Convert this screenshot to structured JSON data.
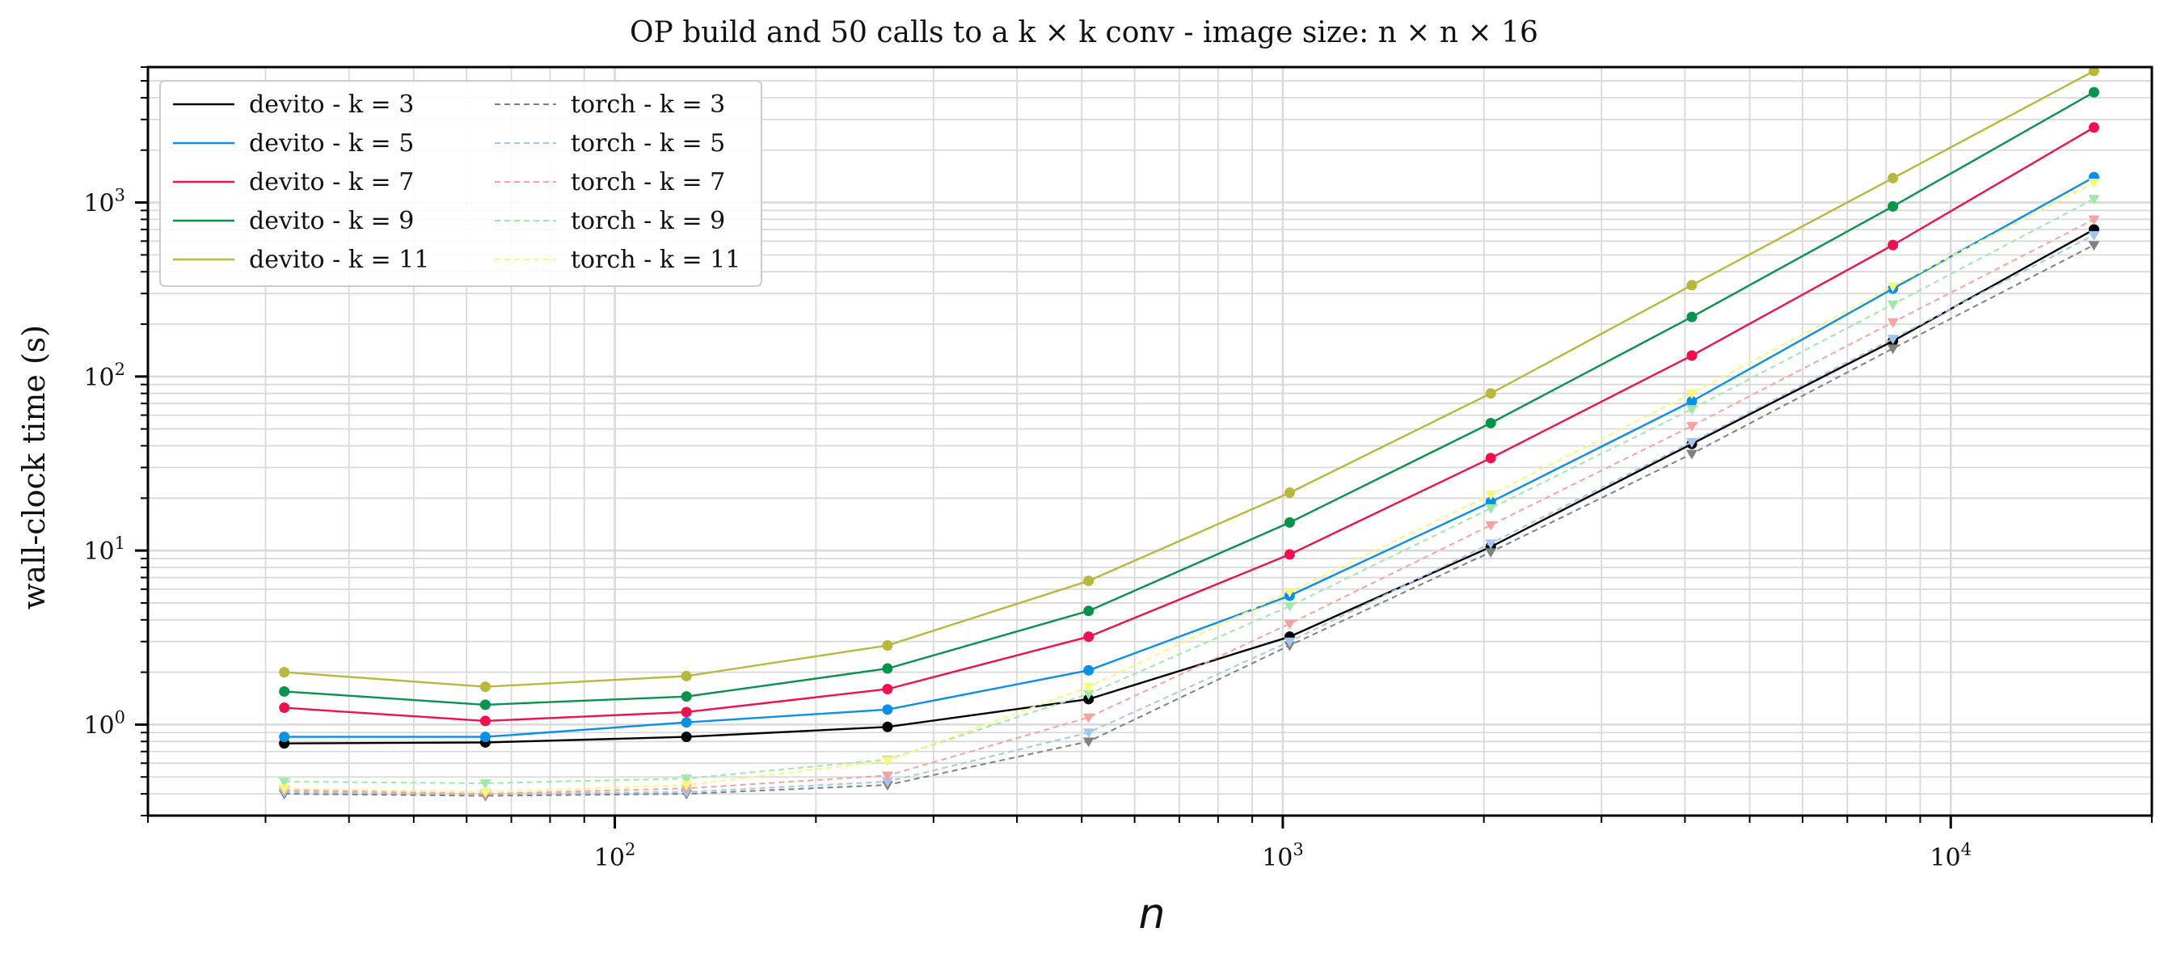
{
  "chart_data": {
    "type": "line",
    "title": "OP build and 50 calls to a k × k conv - image size: n × n × 16",
    "xlabel": "n",
    "ylabel": "wall-clock time (s)",
    "xscale": "log",
    "yscale": "log",
    "xlim": [
      20,
      20000
    ],
    "ylim": [
      0.3,
      6000
    ],
    "grid": true,
    "legend": {
      "position": "top-left",
      "columns": 2
    },
    "x": [
      32,
      64,
      128,
      256,
      512,
      1024,
      2048,
      4096,
      8192,
      16384
    ],
    "x_ticks": [
      {
        "base": "10",
        "exp": "2",
        "value": 100
      },
      {
        "base": "10",
        "exp": "3",
        "value": 1000
      },
      {
        "base": "10",
        "exp": "4",
        "value": 10000
      }
    ],
    "y_ticks": [
      {
        "base": "10",
        "exp": "0",
        "value": 1
      },
      {
        "base": "10",
        "exp": "1",
        "value": 10
      },
      {
        "base": "10",
        "exp": "2",
        "value": 100
      },
      {
        "base": "10",
        "exp": "3",
        "value": 1000
      }
    ],
    "series": [
      {
        "name": "devito - k = 3",
        "color": "#000000",
        "style": "solid",
        "marker": "circle",
        "values": [
          0.78,
          0.79,
          0.85,
          0.97,
          1.4,
          3.2,
          10.5,
          41,
          160,
          700
        ]
      },
      {
        "name": "devito - k = 5",
        "color": "#0a8fe6",
        "style": "solid",
        "marker": "circle",
        "values": [
          0.85,
          0.85,
          1.03,
          1.22,
          2.05,
          5.5,
          19,
          72,
          320,
          1400
        ]
      },
      {
        "name": "devito - k = 7",
        "color": "#f0104f",
        "style": "solid",
        "marker": "circle",
        "values": [
          1.25,
          1.05,
          1.18,
          1.6,
          3.2,
          9.5,
          34,
          132,
          570,
          2700
        ]
      },
      {
        "name": "devito - k = 9",
        "color": "#07934a",
        "style": "solid",
        "marker": "circle",
        "values": [
          1.55,
          1.3,
          1.45,
          2.1,
          4.5,
          14.5,
          54,
          220,
          950,
          4300
        ]
      },
      {
        "name": "devito - k = 11",
        "color": "#b8b83a",
        "style": "solid",
        "marker": "circle",
        "values": [
          2.0,
          1.65,
          1.9,
          2.85,
          6.7,
          21.5,
          80,
          335,
          1380,
          5700
        ]
      },
      {
        "name": "torch - k = 3",
        "color": "#808080",
        "style": "dashed",
        "marker": "triangle",
        "values": [
          0.4,
          0.39,
          0.4,
          0.45,
          0.8,
          2.85,
          9.8,
          36,
          145,
          570
        ]
      },
      {
        "name": "torch - k = 5",
        "color": "#a3c6ef",
        "style": "dashed",
        "marker": "triangle",
        "values": [
          0.41,
          0.4,
          0.41,
          0.47,
          0.9,
          3.0,
          11,
          42,
          165,
          650
        ]
      },
      {
        "name": "torch - k = 7",
        "color": "#f7a1a1",
        "style": "dashed",
        "marker": "triangle",
        "values": [
          0.42,
          0.4,
          0.43,
          0.51,
          1.1,
          3.8,
          14,
          52,
          205,
          800
        ]
      },
      {
        "name": "torch - k = 9",
        "color": "#9fe8a8",
        "style": "dashed",
        "marker": "triangle",
        "values": [
          0.47,
          0.46,
          0.49,
          0.63,
          1.5,
          4.8,
          17.5,
          65,
          260,
          1050
        ]
      },
      {
        "name": "torch - k = 11",
        "color": "#f8f87a",
        "style": "dashed",
        "marker": "triangle",
        "values": [
          0.43,
          0.41,
          0.45,
          0.62,
          1.65,
          5.8,
          21,
          80,
          330,
          1300
        ]
      }
    ]
  }
}
